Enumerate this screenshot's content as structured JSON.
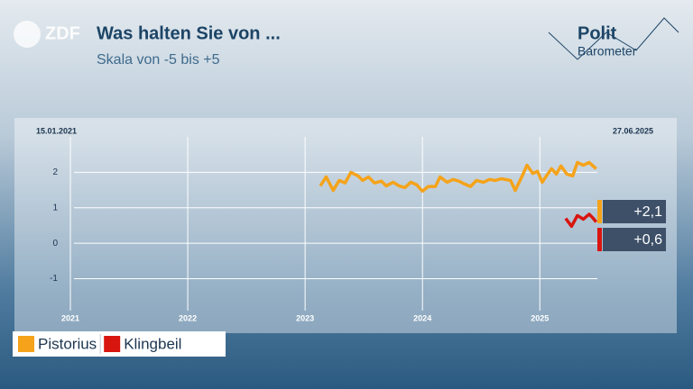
{
  "chart_data": {
    "type": "line",
    "logo": "ZDF",
    "title": "Was halten Sie von ...",
    "subtitle": "Skala von -5 bis +5",
    "brand": [
      "Polit",
      "Barometer"
    ],
    "start_label": "15.01.2021",
    "end_label": "27.06.2025",
    "xlim": [
      2021,
      2025.49
    ],
    "xticks": [
      2021,
      2022,
      2023,
      2024,
      2025
    ],
    "ylim": [
      -1.9,
      3
    ],
    "yticks": [
      -1,
      0,
      1,
      2
    ],
    "grid": true,
    "series": [
      {
        "name": "Pistorius",
        "color": "#f5a31a",
        "end_label": "+2,1",
        "x": [
          2023.13,
          2023.18,
          2023.24,
          2023.29,
          2023.34,
          2023.39,
          2023.45,
          2023.49,
          2023.54,
          2023.59,
          2023.65,
          2023.69,
          2023.75,
          2023.8,
          2023.85,
          2023.9,
          2023.95,
          2024.0,
          2024.05,
          2024.11,
          2024.15,
          2024.21,
          2024.26,
          2024.31,
          2024.36,
          2024.41,
          2024.46,
          2024.52,
          2024.57,
          2024.62,
          2024.67,
          2024.75,
          2024.79,
          2024.85,
          2024.89,
          2024.94,
          2024.98,
          2025.02,
          2025.06,
          2025.1,
          2025.14,
          2025.18,
          2025.23,
          2025.28,
          2025.32,
          2025.37,
          2025.42,
          2025.48
        ],
        "values": [
          1.62,
          1.87,
          1.49,
          1.77,
          1.7,
          2.0,
          1.9,
          1.77,
          1.87,
          1.7,
          1.75,
          1.62,
          1.72,
          1.62,
          1.57,
          1.72,
          1.65,
          1.47,
          1.6,
          1.6,
          1.87,
          1.72,
          1.8,
          1.75,
          1.67,
          1.6,
          1.77,
          1.72,
          1.8,
          1.77,
          1.82,
          1.77,
          1.49,
          1.9,
          2.2,
          1.97,
          2.03,
          1.72,
          1.92,
          2.1,
          1.95,
          2.18,
          1.95,
          1.9,
          2.28,
          2.2,
          2.28,
          2.1
        ]
      },
      {
        "name": "Klingbeil",
        "color": "#d9150f",
        "end_label": "+0,6",
        "x": [
          2025.22,
          2025.27,
          2025.32,
          2025.37,
          2025.42,
          2025.45,
          2025.48
        ],
        "values": [
          0.7,
          0.48,
          0.78,
          0.68,
          0.82,
          0.72,
          0.6
        ]
      }
    ]
  }
}
